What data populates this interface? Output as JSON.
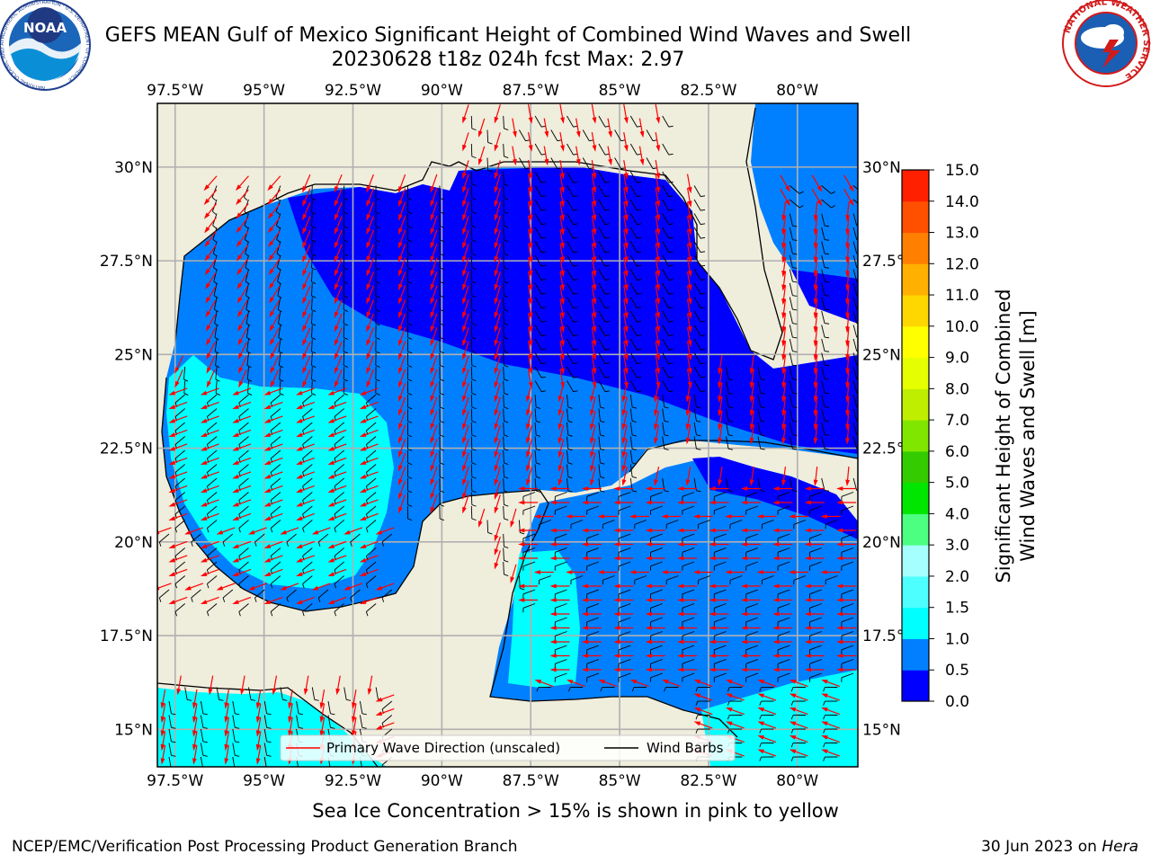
{
  "header": {
    "title_line1": "GEFS MEAN Gulf of Mexico Significant Height of Combined Wind Waves and Swell",
    "title_line2": "20230628 t18z 024h fcst   Max: 2.97"
  },
  "logos": {
    "noaa_text": "NOAA",
    "noaa_ring": "NATIONAL OCEANIC AND ATMOSPHERIC ADMINISTRATION · U.S. DEPARTMENT OF COMMERCE",
    "nws_ring": "NATIONAL WEATHER SERVICE"
  },
  "map": {
    "region": "Gulf of Mexico",
    "lon_labels": [
      "97.5°W",
      "95°W",
      "92.5°W",
      "90°W",
      "87.5°W",
      "85°W",
      "82.5°W",
      "80°W"
    ],
    "lat_labels": [
      "30°N",
      "27.5°N",
      "25°N",
      "22.5°N",
      "20°N",
      "17.5°N",
      "15°N"
    ],
    "lon_range": [
      -98,
      -78.3
    ],
    "lat_range": [
      14,
      31.7
    ],
    "colors": {
      "land": "#efeddc",
      "gridline": "#b0b0b0",
      "wave_arrow": "#ff0000",
      "wind_barb": "#000000"
    }
  },
  "legend": {
    "wave_direction": "Primary Wave Direction (unscaled)",
    "wind_barbs": "Wind Barbs"
  },
  "colorbar": {
    "title_line1": "Significant Height of Combined",
    "title_line2": "Wind Waves and Swell [m]",
    "ticks": [
      "0.0",
      "0.5",
      "1.0",
      "1.5",
      "2.0",
      "3.0",
      "4.0",
      "5.0",
      "6.0",
      "7.0",
      "8.0",
      "9.0",
      "10.0",
      "11.0",
      "12.0",
      "13.0",
      "14.0",
      "15.0"
    ],
    "colors": [
      "#0000ff",
      "#0080ff",
      "#00ffff",
      "#4dffff",
      "#a6ffff",
      "#4dff80",
      "#00e600",
      "#33cc00",
      "#80e600",
      "#bfee00",
      "#e6ff00",
      "#ffff00",
      "#ffd700",
      "#ffb000",
      "#ff8000",
      "#ff5000",
      "#ff2000"
    ]
  },
  "footer": {
    "subtitle": "Sea Ice Concentration > 15% is shown in pink to yellow",
    "credit_left": "NCEP/EMC/Verification Post Processing Product Generation Branch",
    "credit_right_date": "30 Jun 2023 on",
    "credit_right_host": "Hera"
  }
}
